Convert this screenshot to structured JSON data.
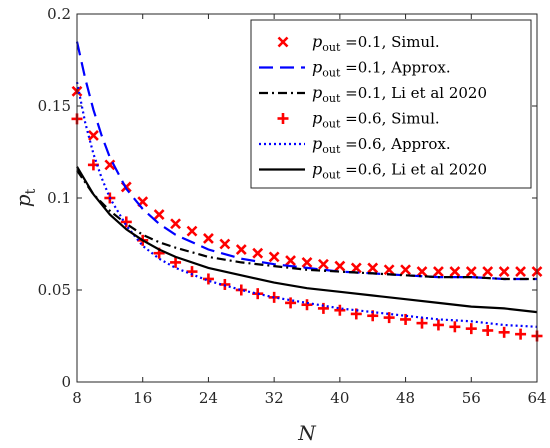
{
  "chart_data": {
    "type": "line",
    "title": "",
    "xlabel": "N",
    "ylabel": "p_t",
    "xlim": [
      8,
      64
    ],
    "ylim": [
      0,
      0.2
    ],
    "xticks": [
      8,
      16,
      24,
      32,
      40,
      48,
      56,
      64
    ],
    "yticks": [
      0,
      0.05,
      0.1,
      0.15,
      0.2
    ],
    "xtick_labels": [
      "8",
      "16",
      "24",
      "32",
      "40",
      "48",
      "56",
      "64"
    ],
    "ytick_labels": [
      "0",
      "0.05",
      "0.1",
      "0.15",
      "0.2"
    ],
    "grid": false,
    "legend_position": "top-right",
    "series": [
      {
        "name": "p_out =0.1, Simul.",
        "legend_parts": {
          "sym": "p",
          "sub": "out",
          "rest": " =0.1, Simul."
        },
        "style": "marker-x",
        "color": "#ff0000",
        "x": [
          8,
          10,
          12,
          14,
          16,
          18,
          20,
          22,
          24,
          26,
          28,
          30,
          32,
          34,
          36,
          38,
          40,
          42,
          44,
          46,
          48,
          50,
          52,
          54,
          56,
          58,
          60,
          62,
          64
        ],
        "y": [
          0.158,
          0.134,
          0.118,
          0.106,
          0.098,
          0.091,
          0.086,
          0.082,
          0.078,
          0.075,
          0.072,
          0.07,
          0.068,
          0.066,
          0.065,
          0.064,
          0.063,
          0.062,
          0.062,
          0.061,
          0.061,
          0.06,
          0.06,
          0.06,
          0.06,
          0.06,
          0.06,
          0.06,
          0.06
        ]
      },
      {
        "name": "p_out =0.1, Approx.",
        "legend_parts": {
          "sym": "p",
          "sub": "out",
          "rest": " =0.1, Approx."
        },
        "style": "dashed",
        "color": "#0000ff",
        "x": [
          8,
          9,
          10,
          11,
          12,
          14,
          16,
          18,
          20,
          24,
          28,
          32,
          36,
          40,
          44,
          48,
          52,
          56,
          60,
          64
        ],
        "y": [
          0.185,
          0.165,
          0.148,
          0.134,
          0.122,
          0.105,
          0.094,
          0.086,
          0.08,
          0.072,
          0.067,
          0.064,
          0.062,
          0.06,
          0.059,
          0.058,
          0.057,
          0.057,
          0.056,
          0.056
        ]
      },
      {
        "name": "p_out =0.1, Li et al 2020",
        "legend_parts": {
          "sym": "p",
          "sub": "out",
          "rest": " =0.1, Li et al 2020"
        },
        "style": "dashdot",
        "color": "#000000",
        "x": [
          8,
          10,
          12,
          14,
          16,
          18,
          20,
          24,
          28,
          32,
          36,
          40,
          44,
          48,
          52,
          56,
          60,
          64
        ],
        "y": [
          0.115,
          0.102,
          0.093,
          0.086,
          0.08,
          0.076,
          0.073,
          0.068,
          0.065,
          0.063,
          0.061,
          0.06,
          0.059,
          0.058,
          0.057,
          0.057,
          0.056,
          0.056
        ]
      },
      {
        "name": "p_out =0.6, Simul.",
        "legend_parts": {
          "sym": "p",
          "sub": "out",
          "rest": " =0.6, Simul."
        },
        "style": "marker-plus",
        "color": "#ff0000",
        "x": [
          8,
          10,
          12,
          14,
          16,
          18,
          20,
          22,
          24,
          26,
          28,
          30,
          32,
          34,
          36,
          38,
          40,
          42,
          44,
          46,
          48,
          50,
          52,
          54,
          56,
          58,
          60,
          62,
          64
        ],
        "y": [
          0.143,
          0.118,
          0.1,
          0.087,
          0.077,
          0.07,
          0.065,
          0.06,
          0.056,
          0.053,
          0.05,
          0.048,
          0.046,
          0.043,
          0.042,
          0.04,
          0.039,
          0.037,
          0.036,
          0.035,
          0.034,
          0.032,
          0.031,
          0.03,
          0.029,
          0.028,
          0.027,
          0.026,
          0.025
        ]
      },
      {
        "name": "p_out =0.6, Approx.",
        "legend_parts": {
          "sym": "p",
          "sub": "out",
          "rest": " =0.6, Approx."
        },
        "style": "dotted",
        "color": "#0000ff",
        "x": [
          8,
          9,
          10,
          11,
          12,
          14,
          16,
          18,
          20,
          24,
          28,
          32,
          36,
          40,
          44,
          48,
          52,
          56,
          60,
          64
        ],
        "y": [
          0.163,
          0.141,
          0.124,
          0.111,
          0.1,
          0.085,
          0.074,
          0.067,
          0.062,
          0.055,
          0.05,
          0.046,
          0.043,
          0.04,
          0.038,
          0.036,
          0.034,
          0.033,
          0.031,
          0.03
        ]
      },
      {
        "name": "p_out =0.6, Li et al 2020",
        "legend_parts": {
          "sym": "p",
          "sub": "out",
          "rest": " =0.6, Li et al 2020"
        },
        "style": "solid",
        "color": "#000000",
        "x": [
          8,
          10,
          12,
          14,
          16,
          18,
          20,
          24,
          28,
          32,
          36,
          40,
          44,
          48,
          52,
          56,
          60,
          64
        ],
        "y": [
          0.117,
          0.102,
          0.091,
          0.083,
          0.077,
          0.072,
          0.068,
          0.062,
          0.058,
          0.054,
          0.051,
          0.049,
          0.047,
          0.045,
          0.043,
          0.041,
          0.04,
          0.038
        ]
      }
    ]
  }
}
